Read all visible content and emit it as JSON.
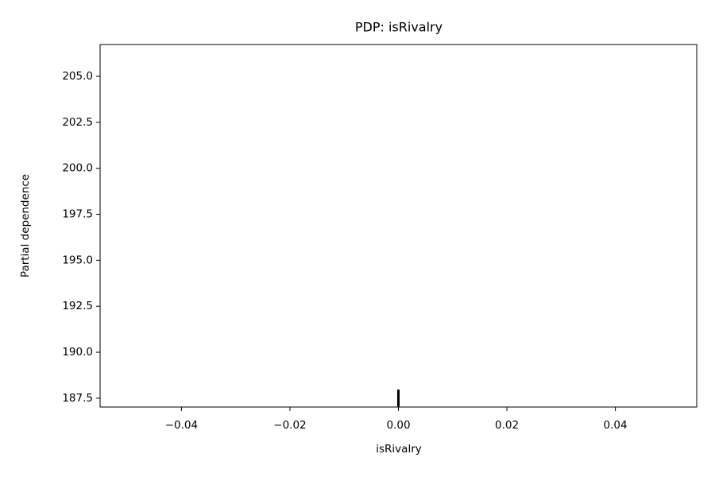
{
  "chart_data": {
    "type": "line",
    "title": "PDP: isRivalry",
    "xlabel": "isRivalry",
    "ylabel": "Partial dependence",
    "rug": [
      0
    ],
    "rug_color": "#000000",
    "xlim": [
      -0.055,
      0.055
    ],
    "xticks": [
      {
        "value": -0.04,
        "label": "−0.04"
      },
      {
        "value": -0.02,
        "label": "−0.02"
      },
      {
        "value": 0,
        "label": "0.00"
      },
      0.02,
      0.04
    ],
    "ylim": [
      187.02,
      206.73
    ],
    "yticks": [
      187.5,
      {
        "value": 190,
        "label": "190.0"
      },
      192.5,
      {
        "value": 195,
        "label": "195.0"
      },
      197.5,
      {
        "value": 200,
        "label": "200.0"
      },
      202.5,
      {
        "value": 205,
        "label": "205.0"
      }
    ]
  }
}
